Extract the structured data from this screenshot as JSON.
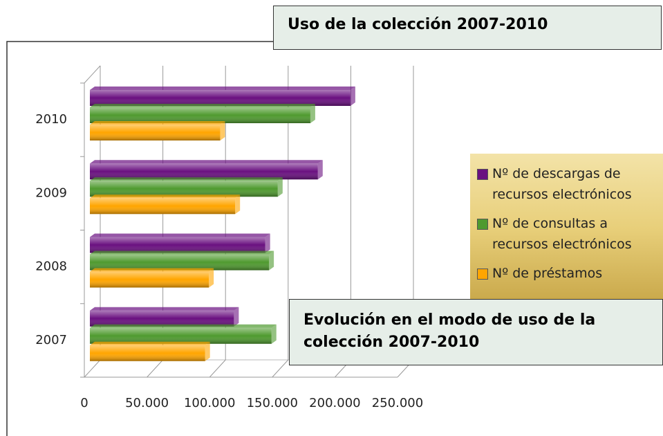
{
  "chart_data": {
    "type": "bar",
    "orientation": "horizontal",
    "title": "Uso de la colección 2007-2010",
    "annotation": "Evolución en el modo de uso de la colección 2007-2010",
    "categories": [
      "2007",
      "2008",
      "2009",
      "2010"
    ],
    "series": [
      {
        "name": "Nº de descargas de recursos electrónicos",
        "color": "#6a1080",
        "values": [
          115000,
          140000,
          182000,
          208000
        ]
      },
      {
        "name": "Nº de consultas a recursos electrónicos",
        "color": "#4f9a2f",
        "values": [
          145000,
          143000,
          150000,
          176000
        ]
      },
      {
        "name": "Nº de préstamos",
        "color": "#ffa500",
        "values": [
          92000,
          95000,
          116000,
          104000
        ]
      }
    ],
    "xlim": [
      0,
      250000
    ],
    "xticks": [
      0,
      {
        "value": 50000,
        "label": "50.000"
      },
      {
        "value": 100000,
        "label": "100.000"
      },
      {
        "value": 150000,
        "label": "150.000"
      },
      {
        "value": 200000,
        "label": "200.000"
      },
      {
        "value": 250000,
        "label": "250.000"
      }
    ],
    "grid": true
  }
}
